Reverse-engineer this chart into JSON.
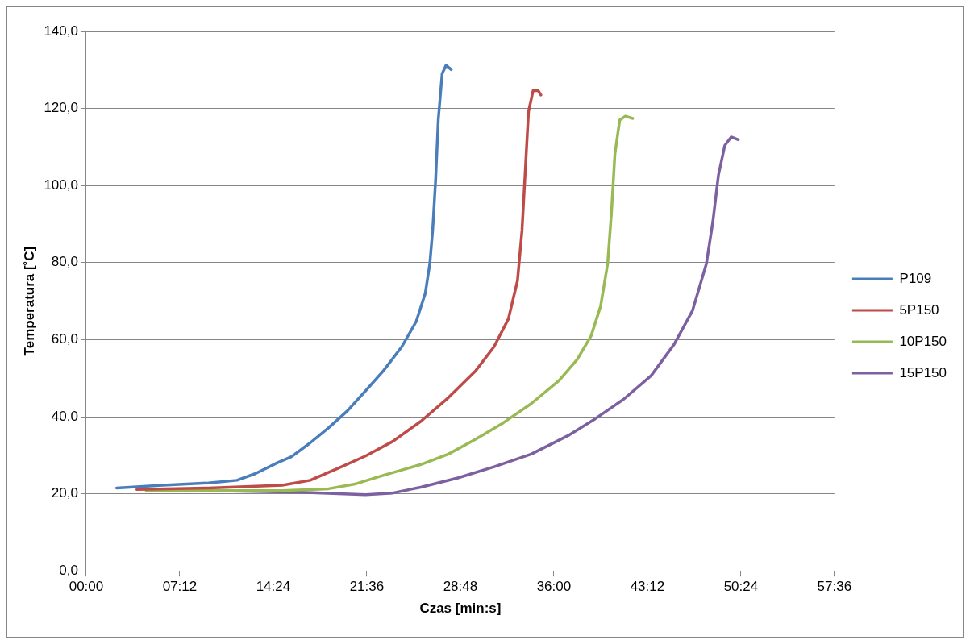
{
  "chart_data": {
    "type": "line",
    "xlabel": "Czas [min:s]",
    "ylabel": "Temperatura [˚C]",
    "xlim": [
      0,
      57.6
    ],
    "xticks": [
      {
        "value": 0,
        "label": "00:00"
      },
      {
        "value": 7.2,
        "label": "07:12"
      },
      {
        "value": 14.4,
        "label": "14:24"
      },
      {
        "value": 21.6,
        "label": "21:36"
      },
      {
        "value": 28.8,
        "label": "28:48"
      },
      {
        "value": 36,
        "label": "36:00"
      },
      {
        "value": 43.2,
        "label": "43:12"
      },
      {
        "value": 50.4,
        "label": "50:24"
      },
      {
        "value": 57.6,
        "label": "57:36"
      }
    ],
    "ylim": [
      0,
      140
    ],
    "yticks": [
      {
        "value": 0,
        "label": "0,0"
      },
      {
        "value": 20,
        "label": "20,0"
      },
      {
        "value": 40,
        "label": "40,0"
      },
      {
        "value": 60,
        "label": "60,0"
      },
      {
        "value": 80,
        "label": "80,0"
      },
      {
        "value": 100,
        "label": "100,0"
      },
      {
        "value": 120,
        "label": "120,0"
      },
      {
        "value": 140,
        "label": "140,0"
      }
    ],
    "grid": "y",
    "legend": "right",
    "marker": "none",
    "line_style": "solid",
    "series": [
      {
        "name": "P109",
        "color": "#4a7ebb",
        "x": [
          2.34,
          5.9,
          9.4,
          11.6,
          13.0,
          14.75,
          15.8,
          17.2,
          18.65,
          20.1,
          21.5,
          22.9,
          24.3,
          25.4,
          26.1,
          26.45,
          26.67,
          26.9,
          27.1,
          27.4,
          27.7,
          28.1
        ],
        "values": [
          21.5,
          22.2,
          22.8,
          23.5,
          25.2,
          28.1,
          29.6,
          33.1,
          37.1,
          41.5,
          46.7,
          52,
          58.2,
          64.7,
          72,
          79.7,
          88.4,
          101.6,
          117,
          129,
          131.2,
          130.1
        ]
      },
      {
        "name": "5P150",
        "color": "#be4b48",
        "x": [
          3.9,
          9.43,
          15.1,
          17.24,
          19.37,
          21.5,
          23.6,
          25.76,
          27.9,
          30.0,
          31.4,
          32.5,
          33.2,
          33.55,
          33.8,
          34.05,
          34.4,
          34.8,
          35.0
        ],
        "values": [
          21.1,
          21.5,
          22.2,
          23.5,
          26.6,
          29.8,
          33.6,
          38.8,
          45,
          52,
          58.2,
          65.4,
          75.3,
          88.4,
          103.8,
          119.2,
          124.6,
          124.6,
          123.5
        ]
      },
      {
        "name": "10P150",
        "color": "#98b954",
        "x": [
          4.61,
          9.43,
          15.1,
          18.66,
          20.78,
          22.9,
          25.76,
          27.88,
          30.0,
          32.1,
          34.26,
          36.4,
          37.8,
          38.87,
          39.6,
          40.14,
          40.43,
          40.7,
          41.07,
          41.5,
          42.07
        ],
        "values": [
          20.8,
          20.8,
          20.8,
          21.3,
          22.6,
          24.8,
          27.6,
          30.3,
          34.2,
          38.4,
          43.4,
          49.4,
          54.9,
          61,
          68.7,
          79.7,
          92.8,
          108.2,
          117,
          118,
          117.4
        ]
      },
      {
        "name": "15P150",
        "color": "#7d60a0",
        "x": [
          5.18,
          9.43,
          16.53,
          21.5,
          23.6,
          25.75,
          28.6,
          31.4,
          34.26,
          37.1,
          39.2,
          41.36,
          43.5,
          45.26,
          46.68,
          47.74,
          48.24,
          48.67,
          49.16,
          49.65,
          50.2
        ],
        "values": [
          20.8,
          20.8,
          20.4,
          19.75,
          20.2,
          21.7,
          24.1,
          27,
          30.3,
          35.1,
          39.5,
          44.5,
          50.7,
          58.8,
          67.6,
          79.7,
          90.6,
          102.7,
          110.4,
          112.6,
          111.9
        ]
      }
    ]
  }
}
